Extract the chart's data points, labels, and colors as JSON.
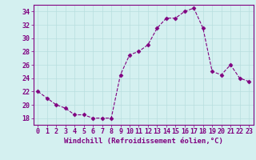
{
  "x": [
    0,
    1,
    2,
    3,
    4,
    5,
    6,
    7,
    8,
    9,
    10,
    11,
    12,
    13,
    14,
    15,
    16,
    17,
    18,
    19,
    20,
    21,
    22,
    23
  ],
  "y": [
    22,
    21,
    20,
    19.5,
    18.5,
    18.5,
    18,
    18,
    18,
    24.5,
    27.5,
    28,
    29,
    31.5,
    33,
    33,
    34,
    34.5,
    31.5,
    25,
    24.5,
    26,
    24,
    23.5
  ],
  "line_color": "#800080",
  "marker": "D",
  "marker_size": 2.5,
  "background_color": "#d4f0f0",
  "grid_color": "#b8dede",
  "ylabel_vals": [
    18,
    20,
    22,
    24,
    26,
    28,
    30,
    32,
    34
  ],
  "ylim": [
    17,
    35
  ],
  "xlim": [
    -0.5,
    23.5
  ],
  "xlabel": "Windchill (Refroidissement éolien,°C)",
  "tick_color": "#800080",
  "label_fontsize": 6,
  "xlabel_fontsize": 6.5
}
